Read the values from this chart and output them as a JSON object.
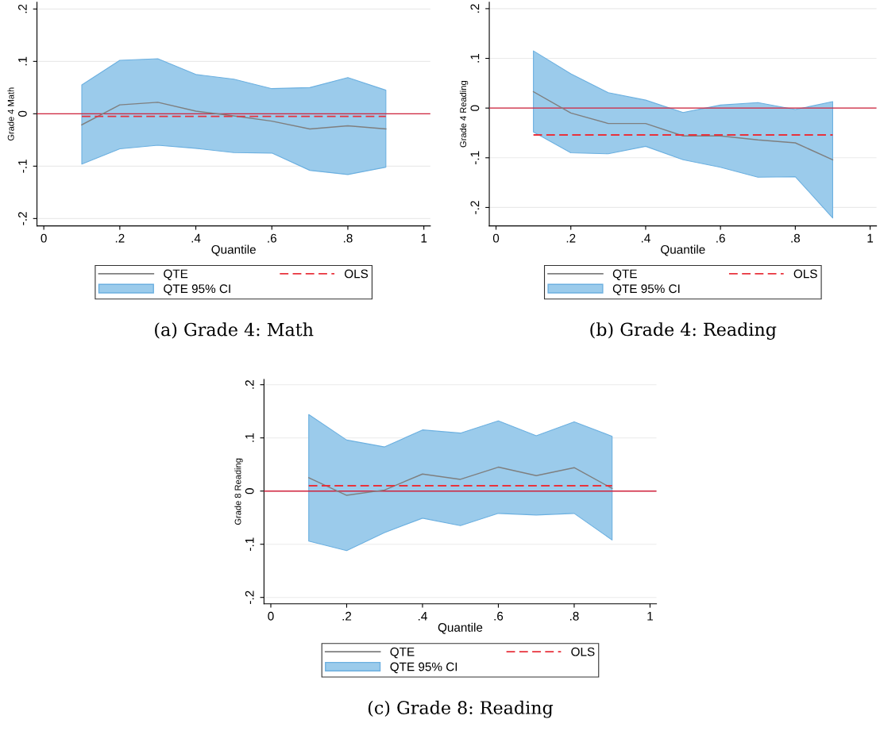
{
  "chart_data": [
    {
      "type": "line",
      "ylabel": "Grade 4 Math",
      "xlabel": "Quantile",
      "annotations": [
        "QTE 95% CI",
        "(a) Grade 4: Math"
      ],
      "x": [
        0.1,
        0.2,
        0.3,
        0.4,
        0.5,
        0.6,
        0.7,
        0.8,
        0.9
      ],
      "series": [
        {
          "name": "QTE",
          "type": "line",
          "color": "#7f7f7f",
          "values": [
            -0.021,
            0.017,
            0.022,
            0.005,
            -0.004,
            -0.014,
            -0.029,
            -0.023,
            -0.029
          ],
          "lower": [
            -0.096,
            -0.067,
            -0.06,
            -0.066,
            -0.074,
            -0.075,
            -0.108,
            -0.116,
            -0.102
          ],
          "upper": [
            0.055,
            0.102,
            0.105,
            0.075,
            0.066,
            0.048,
            0.05,
            0.069,
            0.045
          ]
        },
        {
          "name": "OLS",
          "type": "line",
          "line_style": "dashed",
          "color": "#e8323c",
          "values": [
            -0.005,
            -0.005,
            -0.005,
            -0.005,
            -0.005,
            -0.005,
            -0.005,
            -0.005,
            -0.005
          ]
        }
      ],
      "ref_lines": [
        {
          "axis": "y",
          "value": 0,
          "color": "#d0223c"
        }
      ],
      "xlim": [
        -0.018,
        1.017
      ],
      "ylim": [
        -0.214,
        0.213
      ],
      "xticks": [
        0,
        {
          "value": 0.2,
          "label": ".2"
        },
        {
          "value": 0.4,
          "label": ".4"
        },
        {
          "value": 0.6,
          "label": ".6"
        },
        {
          "value": 0.8,
          "label": ".8"
        },
        1
      ],
      "yticks": [
        {
          "value": -0.2,
          "label": "-.2"
        },
        {
          "value": -0.1,
          "label": "-.1"
        },
        0,
        {
          "value": 0.1,
          "label": ".1"
        },
        {
          "value": 0.2,
          "label": ".2"
        }
      ],
      "grid": "y",
      "legend": "bottom"
    },
    {
      "type": "line",
      "ylabel": "Grade 4 Reading",
      "xlabel": "Quantile",
      "annotations": [
        "QTE 95% CI",
        "(b) Grade 4: Reading"
      ],
      "x": [
        0.1,
        0.2,
        0.3,
        0.4,
        0.5,
        0.6,
        0.7,
        0.8,
        0.9
      ],
      "series": [
        {
          "name": "QTE",
          "type": "line",
          "color": "#7f7f7f",
          "values": [
            0.033,
            -0.01,
            -0.031,
            -0.031,
            -0.056,
            -0.056,
            -0.064,
            -0.07,
            -0.104
          ],
          "lower": [
            -0.048,
            -0.09,
            -0.092,
            -0.077,
            -0.104,
            -0.119,
            -0.139,
            -0.138,
            -0.221
          ],
          "upper": [
            0.115,
            0.069,
            0.031,
            0.016,
            -0.009,
            0.006,
            0.011,
            -0.003,
            0.013
          ]
        },
        {
          "name": "OLS",
          "type": "line",
          "line_style": "dashed",
          "color": "#e8323c",
          "values": [
            -0.054,
            -0.054,
            -0.054,
            -0.054,
            -0.054,
            -0.054,
            -0.054,
            -0.054,
            -0.054
          ]
        }
      ],
      "ref_lines": [
        {
          "axis": "y",
          "value": 0,
          "color": "#d0223c"
        }
      ],
      "xlim": [
        -0.018,
        1.017
      ],
      "ylim": [
        -0.237,
        0.213
      ],
      "xticks": [
        0,
        {
          "value": 0.2,
          "label": ".2"
        },
        {
          "value": 0.4,
          "label": ".4"
        },
        {
          "value": 0.6,
          "label": ".6"
        },
        {
          "value": 0.8,
          "label": ".8"
        },
        1
      ],
      "yticks": [
        {
          "value": -0.2,
          "label": "-.2"
        },
        {
          "value": -0.1,
          "label": "-.1"
        },
        0,
        {
          "value": 0.1,
          "label": ".1"
        },
        {
          "value": 0.2,
          "label": ".2"
        }
      ],
      "grid": "y",
      "legend": "bottom"
    },
    {
      "type": "line",
      "ylabel": "Grade 8 Reading",
      "xlabel": "Quantile",
      "annotations": [
        "QTE 95% CI",
        "(c) Grade 8: Reading"
      ],
      "x": [
        0.1,
        0.2,
        0.3,
        0.4,
        0.5,
        0.6,
        0.7,
        0.8,
        0.9
      ],
      "series": [
        {
          "name": "QTE",
          "type": "line",
          "color": "#7f7f7f",
          "values": [
            0.025,
            -0.008,
            0.002,
            0.032,
            0.022,
            0.045,
            0.029,
            0.044,
            0.005
          ],
          "lower": [
            -0.094,
            -0.112,
            -0.078,
            -0.051,
            -0.065,
            -0.042,
            -0.045,
            -0.042,
            -0.092
          ],
          "upper": [
            0.144,
            0.096,
            0.083,
            0.115,
            0.109,
            0.132,
            0.104,
            0.13,
            0.103
          ]
        },
        {
          "name": "OLS",
          "type": "line",
          "line_style": "dashed",
          "color": "#e8323c",
          "values": [
            0.01,
            0.01,
            0.01,
            0.01,
            0.01,
            0.01,
            0.01,
            0.01,
            0.01
          ]
        }
      ],
      "ref_lines": [
        {
          "axis": "y",
          "value": 0,
          "color": "#d0223c"
        }
      ],
      "xlim": [
        -0.018,
        1.017
      ],
      "ylim": [
        -0.212,
        0.21
      ],
      "xticks": [
        0,
        {
          "value": 0.2,
          "label": ".2"
        },
        {
          "value": 0.4,
          "label": ".4"
        },
        {
          "value": 0.6,
          "label": ".6"
        },
        {
          "value": 0.8,
          "label": ".8"
        },
        1
      ],
      "yticks": [
        {
          "value": -0.2,
          "label": "-.2"
        },
        {
          "value": -0.1,
          "label": "-.1"
        },
        0,
        {
          "value": 0.1,
          "label": ".1"
        },
        {
          "value": 0.2,
          "label": ".2"
        }
      ],
      "grid": "y",
      "legend": "bottom"
    }
  ]
}
